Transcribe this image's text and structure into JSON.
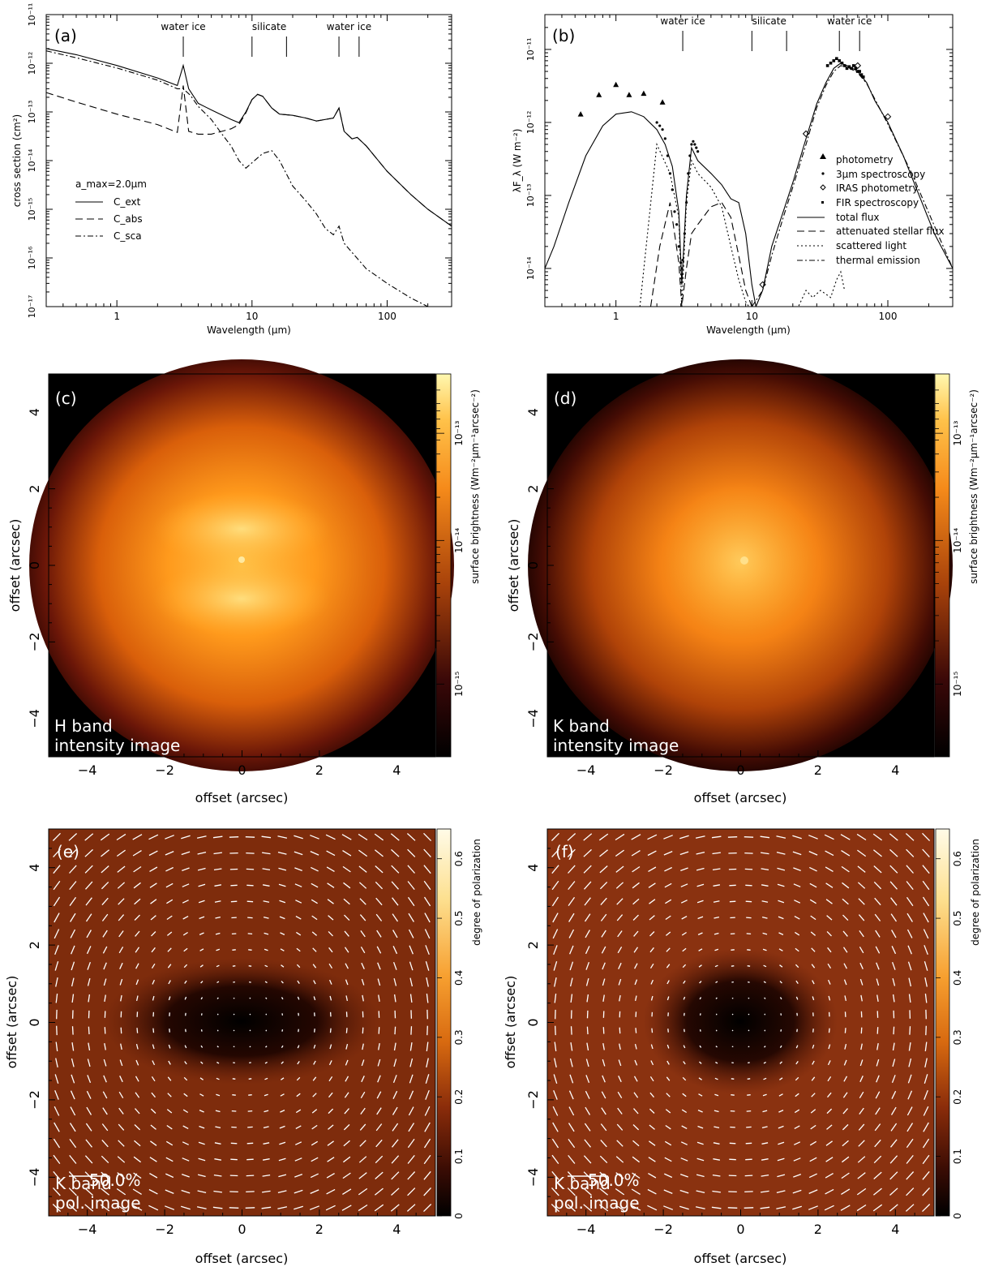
{
  "chart_data": [
    {
      "panel": "(a)",
      "type": "line",
      "xlabel": "Wavelength (μm)",
      "ylabel": "cross section (cm²)",
      "xscale": "log",
      "yscale": "log",
      "xlim": [
        0.3,
        300
      ],
      "ylim": [
        1e-17,
        1e-11
      ],
      "x_ticks": [
        "1",
        "10",
        "100"
      ],
      "y_ticks": [
        "10⁻¹⁷",
        "10⁻¹⁶",
        "10⁻¹⁵",
        "10⁻¹⁴",
        "10⁻¹³",
        "10⁻¹²",
        "10⁻¹¹"
      ],
      "annotations": [
        {
          "text": "water ice",
          "markers": [
            3.1
          ]
        },
        {
          "text": "silicate",
          "markers": [
            10,
            18
          ]
        },
        {
          "text": "water ice",
          "markers": [
            44,
            62
          ]
        }
      ],
      "legend_title": "a_max=2.0μm",
      "legend": [
        "C_ext",
        "C_abs",
        "C_sca"
      ],
      "series": [
        {
          "name": "C_ext",
          "style": "solid",
          "x": [
            0.3,
            0.5,
            1,
            2,
            2.8,
            3.1,
            3.4,
            4,
            5,
            7,
            8,
            9,
            10,
            11,
            12,
            14,
            16,
            20,
            25,
            30,
            40,
            44,
            48,
            55,
            60,
            70,
            100,
            150,
            200,
            300
          ],
          "y": [
            2e-12,
            1.5e-12,
            9e-13,
            5e-13,
            3.5e-13,
            9e-13,
            3e-13,
            1.5e-13,
            1.1e-13,
            7e-14,
            6e-14,
            1e-13,
            1.8e-13,
            2.3e-13,
            2.1e-13,
            1.2e-13,
            9e-14,
            8.5e-14,
            7.5e-14,
            6.5e-14,
            7.5e-14,
            1.2e-13,
            4e-14,
            2.8e-14,
            3e-14,
            2e-14,
            6e-15,
            2e-15,
            1e-15,
            4.5e-16
          ]
        },
        {
          "name": "C_abs",
          "style": "dash",
          "x": [
            0.3,
            0.5,
            1,
            2,
            2.8,
            3.1,
            3.4,
            4,
            5,
            7,
            8,
            9,
            10,
            11,
            12,
            14,
            16,
            20,
            25,
            30,
            40,
            44,
            48,
            55,
            60,
            70,
            100,
            150,
            200,
            300
          ],
          "y": [
            2.5e-13,
            1.6e-13,
            9e-14,
            5.5e-14,
            3.8e-14,
            3.5e-13,
            4e-14,
            3.5e-14,
            3.5e-14,
            4.5e-14,
            5.5e-14,
            9.5e-14,
            1.8e-13,
            2.3e-13,
            2.1e-13,
            1.2e-13,
            9e-14,
            8.5e-14,
            7.5e-14,
            6.5e-14,
            7.5e-14,
            1.2e-13,
            4e-14,
            2.8e-14,
            3e-14,
            2e-14,
            6e-15,
            2e-15,
            1e-15,
            4.5e-16
          ]
        },
        {
          "name": "C_sca",
          "style": "dashdot",
          "x": [
            0.3,
            0.5,
            1,
            2,
            2.8,
            3.1,
            3.5,
            4,
            5,
            6,
            7,
            8,
            9,
            10,
            12,
            14,
            16,
            20,
            25,
            30,
            35,
            40,
            44,
            48,
            55,
            70,
            100,
            150,
            200
          ],
          "y": [
            1.8e-12,
            1.3e-12,
            8e-13,
            4.5e-13,
            3e-13,
            3e-13,
            2.2e-13,
            1.3e-13,
            7e-14,
            3.5e-14,
            2e-14,
            1e-14,
            7e-15,
            9e-15,
            1.4e-14,
            1.6e-14,
            1e-14,
            3e-15,
            1.5e-15,
            8e-16,
            4e-16,
            3e-16,
            4.5e-16,
            2e-16,
            1.3e-16,
            6e-17,
            3e-17,
            1.5e-17,
            1e-17
          ]
        }
      ]
    },
    {
      "panel": "(b)",
      "type": "line",
      "xlabel": "Wavelength (μm)",
      "ylabel": "λF_λ (W m⁻²)",
      "xscale": "log",
      "yscale": "log",
      "xlim": [
        0.3,
        300
      ],
      "ylim": [
        3e-15,
        3e-11
      ],
      "x_ticks": [
        "1",
        "10",
        "100"
      ],
      "y_ticks": [
        "10⁻¹⁴",
        "10⁻¹³",
        "10⁻¹²",
        "10⁻¹¹"
      ],
      "annotations": [
        {
          "text": "water ice",
          "markers": [
            3.1
          ]
        },
        {
          "text": "silicate",
          "markers": [
            10,
            18
          ]
        },
        {
          "text": "water ice",
          "markers": [
            44,
            62
          ]
        }
      ],
      "legend": [
        "photometry",
        "3μm spectroscopy",
        "IRAS photometry",
        "FIR spectroscopy",
        "total flux",
        "attenuated stellar flux",
        "scattered light",
        "thermal emission"
      ],
      "series": [
        {
          "name": "total flux",
          "style": "solid",
          "x": [
            0.3,
            0.35,
            0.45,
            0.6,
            0.8,
            1,
            1.3,
            1.6,
            2,
            2.3,
            2.6,
            2.9,
            3.05,
            3.3,
            3.6,
            4,
            5,
            6,
            7,
            8,
            9,
            10,
            10.7,
            12,
            14,
            17,
            20,
            25,
            30,
            35,
            40,
            45,
            50,
            55,
            60,
            70,
            80,
            100,
            130,
            170,
            220,
            300
          ],
          "y": [
            1e-14,
            2e-14,
            8e-14,
            3.5e-13,
            9e-13,
            1.3e-12,
            1.4e-12,
            1.2e-12,
            8e-13,
            5e-13,
            2.5e-13,
            6e-14,
            6e-15,
            1e-13,
            4.5e-13,
            3e-13,
            2e-13,
            1.4e-13,
            9e-14,
            8e-14,
            3e-14,
            6e-15,
            3e-15,
            5e-15,
            2e-14,
            6e-14,
            1.5e-13,
            6e-13,
            1.8e-12,
            3.5e-12,
            5.5e-12,
            6.5e-12,
            6e-12,
            5.5e-12,
            5e-12,
            3.5e-12,
            2e-12,
            1e-12,
            3.5e-13,
            1e-13,
            3e-14,
            1e-14
          ]
        },
        {
          "name": "attenuated stellar flux",
          "style": "dash",
          "x": [
            1.8,
            2.1,
            2.5,
            2.9,
            3.05,
            3.3,
            3.6,
            4,
            5,
            6,
            7,
            8,
            9,
            10
          ],
          "y": [
            3e-15,
            2e-14,
            8e-14,
            1.2e-14,
            3e-15,
            1e-14,
            3e-14,
            4e-14,
            7e-14,
            8e-14,
            5e-14,
            1.5e-14,
            5e-15,
            3e-15
          ]
        },
        {
          "name": "scattered light",
          "style": "dot",
          "x": [
            1.5,
            2,
            2.5,
            2.9,
            3.05,
            3.3,
            3.6,
            4,
            5,
            6,
            7,
            8,
            9,
            9.5,
            22,
            25,
            28,
            32,
            38,
            42,
            45,
            48
          ],
          "y": [
            3e-15,
            5e-13,
            2e-13,
            5e-14,
            3e-15,
            8e-14,
            3e-13,
            2e-13,
            1.3e-13,
            7e-14,
            2e-14,
            7e-15,
            3.5e-15,
            3e-15,
            3e-15,
            5e-15,
            4e-15,
            5e-15,
            4e-15,
            7e-15,
            9e-15,
            5e-15
          ]
        },
        {
          "name": "thermal emission",
          "style": "dashdot",
          "x": [
            10,
            12,
            14,
            17,
            20,
            25,
            30,
            35,
            40,
            45,
            50,
            60,
            70,
            100,
            150,
            300
          ],
          "y": [
            3e-15,
            5e-15,
            1.5e-14,
            5e-14,
            1.3e-13,
            5e-13,
            1.6e-12,
            3.2e-12,
            5e-12,
            6e-12,
            5.8e-12,
            4.8e-12,
            3.4e-12,
            9.5e-13,
            2e-13,
            1e-14
          ]
        },
        {
          "name": "photometry",
          "style": "triangle",
          "x": [
            0.55,
            0.75,
            1,
            1.25,
            1.6,
            2.2
          ],
          "y": [
            1.3e-12,
            2.4e-12,
            3.3e-12,
            2.4e-12,
            2.5e-12,
            1.9e-12
          ]
        },
        {
          "name": "3μm spectroscopy",
          "style": "dots",
          "x": [
            2.0,
            2.1,
            2.2,
            2.3,
            2.4,
            2.5,
            2.6,
            2.7,
            2.8,
            2.9,
            3.0,
            3.05,
            3.1,
            3.2,
            3.3,
            3.4,
            3.5,
            3.6,
            3.7,
            3.8,
            3.9,
            4.0
          ],
          "y": [
            1e-12,
            9e-13,
            8e-13,
            6e-13,
            3.5e-13,
            2e-13,
            1.2e-13,
            6e-14,
            4e-14,
            2e-14,
            1.2e-14,
            1e-14,
            1.3e-14,
            3e-14,
            8e-14,
            2e-13,
            3.5e-13,
            5e-13,
            5.5e-13,
            5e-13,
            4.5e-13,
            4e-13
          ]
        },
        {
          "name": "IRAS photometry",
          "style": "diamond",
          "x": [
            12,
            25,
            60,
            100
          ],
          "y": [
            6e-15,
            7e-13,
            6e-12,
            1.2e-12
          ]
        },
        {
          "name": "FIR spectroscopy",
          "style": "square",
          "x": [
            36,
            38,
            40,
            42,
            44,
            46,
            48,
            50,
            52,
            54,
            56,
            58,
            60,
            62,
            64,
            66
          ],
          "y": [
            6e-12,
            6.5e-12,
            7e-12,
            7.5e-12,
            7e-12,
            6.5e-12,
            6e-12,
            5.5e-12,
            5.8e-12,
            5.5e-12,
            6e-12,
            5.5e-12,
            5e-12,
            5e-12,
            4.5e-12,
            4.2e-12
          ]
        }
      ]
    },
    {
      "panel": "(c)",
      "type": "heatmap",
      "label_lines": [
        "H band",
        "intensity image"
      ],
      "xlabel": "offset (arcsec)",
      "ylabel": "offset (arcsec)",
      "xlim": [
        -5,
        5
      ],
      "ylim": [
        -5,
        5
      ],
      "x_ticks": [
        "−4",
        "−2",
        "0",
        "2",
        "4"
      ],
      "y_ticks": [
        "−4",
        "−2",
        "0",
        "2",
        "4"
      ],
      "colorbar_label": "surface brightness (Wm⁻²μm⁻¹arcsec⁻²)",
      "colorbar_ticks": [
        "10⁻¹⁵",
        "10⁻¹⁴",
        "10⁻¹³"
      ],
      "colorbar_scale": "log"
    },
    {
      "panel": "(d)",
      "type": "heatmap",
      "label_lines": [
        "K band",
        "intensity image"
      ],
      "xlabel": "offset (arcsec)",
      "ylabel": "offset (arcsec)",
      "xlim": [
        -5,
        5
      ],
      "ylim": [
        -5,
        5
      ],
      "x_ticks": [
        "−4",
        "−2",
        "0",
        "2",
        "4"
      ],
      "y_ticks": [
        "−4",
        "−2",
        "0",
        "2",
        "4"
      ],
      "colorbar_label": "surface brightness (Wm⁻²μm⁻¹arcsec⁻²)",
      "colorbar_ticks": [
        "10⁻¹⁵",
        "10⁻¹⁴",
        "10⁻¹³"
      ],
      "colorbar_scale": "log"
    },
    {
      "panel": "(e)",
      "type": "heatmap",
      "label_lines": [
        "K band",
        "pol. image"
      ],
      "scale_text": "50.0%",
      "xlabel": "offset (arcsec)",
      "ylabel": "offset (arcsec)",
      "xlim": [
        -5,
        5
      ],
      "ylim": [
        -5,
        5
      ],
      "x_ticks": [
        "−4",
        "−2",
        "0",
        "2",
        "4"
      ],
      "y_ticks": [
        "−4",
        "−2",
        "0",
        "2",
        "4"
      ],
      "colorbar_label": "degree of polarization",
      "colorbar_ticks": [
        "0",
        "0.1",
        "0.2",
        "0.3",
        "0.4",
        "0.5",
        "0.6"
      ],
      "colorbar_range": [
        0,
        0.65
      ]
    },
    {
      "panel": "(f)",
      "type": "heatmap",
      "label_lines": [
        "K band",
        "pol. image"
      ],
      "scale_text": "50.0%",
      "xlabel": "offset (arcsec)",
      "ylabel": "offset (arcsec)",
      "xlim": [
        -5,
        5
      ],
      "ylim": [
        -5,
        5
      ],
      "x_ticks": [
        "−4",
        "−2",
        "0",
        "2",
        "4"
      ],
      "y_ticks": [
        "−4",
        "−2",
        "0",
        "2",
        "4"
      ],
      "colorbar_label": "degree of polarization",
      "colorbar_ticks": [
        "0",
        "0.1",
        "0.2",
        "0.3",
        "0.4",
        "0.5",
        "0.6"
      ],
      "colorbar_range": [
        0,
        0.65
      ]
    }
  ]
}
